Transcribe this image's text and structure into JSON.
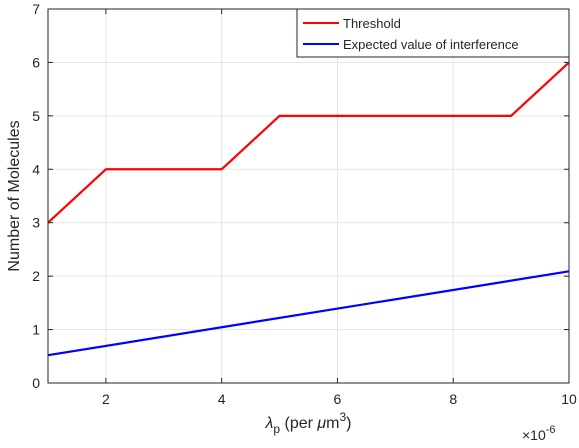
{
  "chart_data": {
    "type": "line",
    "xlabel_main": "λ",
    "xlabel_sub": "p",
    "xlabel_rest": " (per ",
    "xlabel_mu": "μ",
    "xlabel_unit": "m",
    "xlabel_sup": "3",
    "xlabel_close": ")",
    "ylabel": "Number of Molecules",
    "xlim": [
      1,
      10
    ],
    "ylim": [
      0,
      7
    ],
    "xticks": [
      2,
      4,
      6,
      8,
      10
    ],
    "yticks": [
      0,
      1,
      2,
      3,
      4,
      5,
      6,
      7
    ],
    "x_exponent_base": "×10",
    "x_exponent_power": "-6",
    "grid": true,
    "legend_position": "top-right",
    "series": [
      {
        "name": "Threshold",
        "color": "#ff0000",
        "x": [
          1,
          2,
          3,
          4,
          5,
          6,
          7,
          8,
          9,
          10
        ],
        "y": [
          3,
          4,
          4,
          4,
          5,
          5,
          5,
          5,
          5,
          6
        ]
      },
      {
        "name": "Expected value of interference",
        "color": "#0000ff",
        "x": [
          1,
          10
        ],
        "y": [
          0.52,
          2.09
        ]
      }
    ]
  }
}
